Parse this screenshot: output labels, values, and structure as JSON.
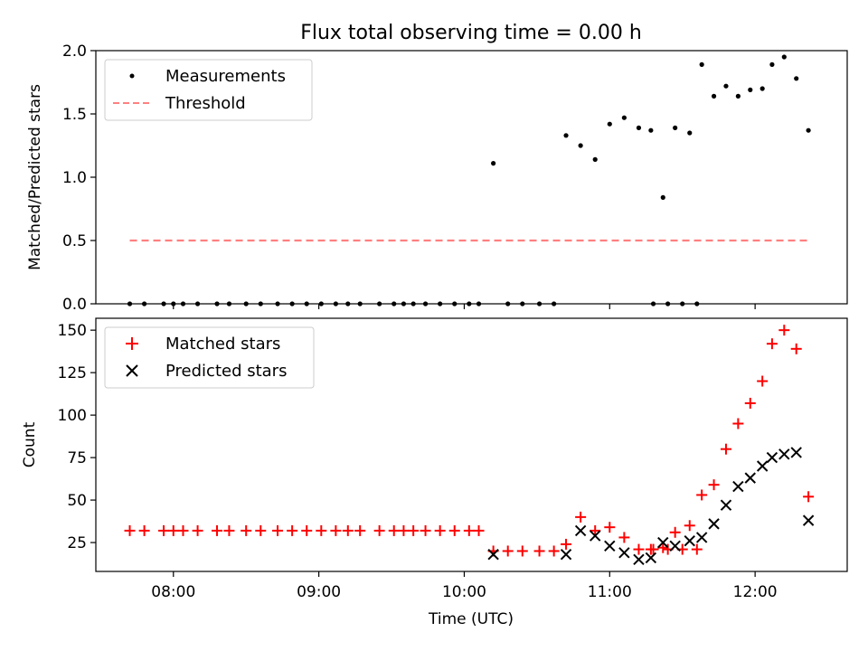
{
  "chart_data": [
    {
      "type": "scatter",
      "title": "Flux total observing time = 0.00 h",
      "ylabel": "Matched/Predicted stars",
      "xlabel": "",
      "xlim": [
        "07:28",
        "12:38"
      ],
      "ylim": [
        0,
        2.0
      ],
      "yticks": [
        "0.0",
        "0.5",
        "1.0",
        "1.5",
        "2.0"
      ],
      "grid": false,
      "legend_position": "top-left",
      "legend": [
        "Measurements",
        "Threshold"
      ],
      "series": [
        {
          "name": "Measurements",
          "marker": "dot",
          "color": "#000000",
          "points": [
            [
              "07:42",
              0
            ],
            [
              "07:48",
              0
            ],
            [
              "07:56",
              0
            ],
            [
              "08:00",
              0
            ],
            [
              "08:04",
              0
            ],
            [
              "08:10",
              0
            ],
            [
              "08:18",
              0
            ],
            [
              "08:23",
              0
            ],
            [
              "08:30",
              0
            ],
            [
              "08:36",
              0
            ],
            [
              "08:43",
              0
            ],
            [
              "08:49",
              0
            ],
            [
              "08:55",
              0
            ],
            [
              "09:01",
              0
            ],
            [
              "09:07",
              0
            ],
            [
              "09:12",
              0
            ],
            [
              "09:17",
              0
            ],
            [
              "09:25",
              0
            ],
            [
              "09:31",
              0
            ],
            [
              "09:35",
              0
            ],
            [
              "09:39",
              0
            ],
            [
              "09:44",
              0
            ],
            [
              "09:50",
              0
            ],
            [
              "09:56",
              0
            ],
            [
              "10:02",
              0
            ],
            [
              "10:06",
              0
            ],
            [
              "10:12",
              1.11
            ],
            [
              "10:18",
              0
            ],
            [
              "10:24",
              0
            ],
            [
              "10:31",
              0
            ],
            [
              "10:37",
              0
            ],
            [
              "10:42",
              1.33
            ],
            [
              "10:48",
              1.25
            ],
            [
              "10:54",
              1.14
            ],
            [
              "11:00",
              1.42
            ],
            [
              "11:06",
              1.47
            ],
            [
              "11:12",
              1.39
            ],
            [
              "11:18",
              0
            ],
            [
              "11:24",
              0
            ],
            [
              "11:30",
              0
            ],
            [
              "11:36",
              0
            ],
            [
              "11:17",
              1.37
            ],
            [
              "11:22",
              0.84
            ],
            [
              "11:27",
              1.39
            ],
            [
              "11:33",
              1.35
            ],
            [
              "11:38",
              1.89
            ],
            [
              "11:43",
              1.64
            ],
            [
              "11:48",
              1.72
            ],
            [
              "11:53",
              1.64
            ],
            [
              "11:58",
              1.69
            ],
            [
              "12:03",
              1.7
            ],
            [
              "12:07",
              1.89
            ],
            [
              "12:12",
              1.95
            ],
            [
              "12:17",
              1.78
            ],
            [
              "12:22",
              1.37
            ]
          ]
        },
        {
          "name": "Threshold",
          "style": "dashed",
          "color": "#ff8080",
          "points": [
            [
              "07:42",
              0.5
            ],
            [
              "12:22",
              0.5
            ]
          ]
        }
      ]
    },
    {
      "type": "scatter",
      "title": "",
      "ylabel": "Count",
      "xlabel": "Time (UTC)",
      "xlim": [
        "07:28",
        "12:38"
      ],
      "ylim": [
        8,
        157
      ],
      "yticks": [
        "25",
        "50",
        "75",
        "100",
        "125",
        "150"
      ],
      "xticks": [
        "08:00",
        "09:00",
        "10:00",
        "11:00",
        "12:00"
      ],
      "grid": false,
      "legend_position": "top-left",
      "legend": [
        "Matched stars",
        "Predicted stars"
      ],
      "series": [
        {
          "name": "Matched stars",
          "marker": "plus",
          "color": "#ff0000",
          "points": [
            [
              "07:42",
              32
            ],
            [
              "07:48",
              32
            ],
            [
              "07:56",
              32
            ],
            [
              "08:00",
              32
            ],
            [
              "08:04",
              32
            ],
            [
              "08:10",
              32
            ],
            [
              "08:18",
              32
            ],
            [
              "08:23",
              32
            ],
            [
              "08:30",
              32
            ],
            [
              "08:36",
              32
            ],
            [
              "08:43",
              32
            ],
            [
              "08:49",
              32
            ],
            [
              "08:55",
              32
            ],
            [
              "09:01",
              32
            ],
            [
              "09:07",
              32
            ],
            [
              "09:12",
              32
            ],
            [
              "09:17",
              32
            ],
            [
              "09:25",
              32
            ],
            [
              "09:31",
              32
            ],
            [
              "09:35",
              32
            ],
            [
              "09:39",
              32
            ],
            [
              "09:44",
              32
            ],
            [
              "09:50",
              32
            ],
            [
              "09:56",
              32
            ],
            [
              "10:02",
              32
            ],
            [
              "10:06",
              32
            ],
            [
              "10:12",
              20
            ],
            [
              "10:18",
              20
            ],
            [
              "10:24",
              20
            ],
            [
              "10:31",
              20
            ],
            [
              "10:37",
              20
            ],
            [
              "10:42",
              24
            ],
            [
              "10:48",
              40
            ],
            [
              "10:54",
              32
            ],
            [
              "11:00",
              34
            ],
            [
              "11:06",
              28
            ],
            [
              "11:12",
              21
            ],
            [
              "11:18",
              21
            ],
            [
              "11:24",
              21
            ],
            [
              "11:30",
              21
            ],
            [
              "11:36",
              21
            ],
            [
              "11:17",
              21
            ],
            [
              "11:22",
              22
            ],
            [
              "11:27",
              31
            ],
            [
              "11:33",
              35
            ],
            [
              "11:38",
              53
            ],
            [
              "11:43",
              59
            ],
            [
              "11:48",
              80
            ],
            [
              "11:53",
              95
            ],
            [
              "11:58",
              107
            ],
            [
              "12:03",
              120
            ],
            [
              "12:07",
              142
            ],
            [
              "12:12",
              150
            ],
            [
              "12:17",
              139
            ],
            [
              "12:22",
              52
            ]
          ]
        },
        {
          "name": "Predicted stars",
          "marker": "x",
          "color": "#000000",
          "points": [
            [
              "10:12",
              18
            ],
            [
              "10:42",
              18
            ],
            [
              "10:48",
              32
            ],
            [
              "10:54",
              29
            ],
            [
              "11:00",
              23
            ],
            [
              "11:06",
              19
            ],
            [
              "11:12",
              15
            ],
            [
              "11:17",
              16
            ],
            [
              "11:22",
              25
            ],
            [
              "11:27",
              23
            ],
            [
              "11:33",
              26
            ],
            [
              "11:38",
              28
            ],
            [
              "11:43",
              36
            ],
            [
              "11:48",
              47
            ],
            [
              "11:53",
              58
            ],
            [
              "11:58",
              63
            ],
            [
              "12:03",
              70
            ],
            [
              "12:07",
              75
            ],
            [
              "12:12",
              77
            ],
            [
              "12:17",
              78
            ],
            [
              "12:22",
              38
            ]
          ]
        }
      ]
    }
  ]
}
